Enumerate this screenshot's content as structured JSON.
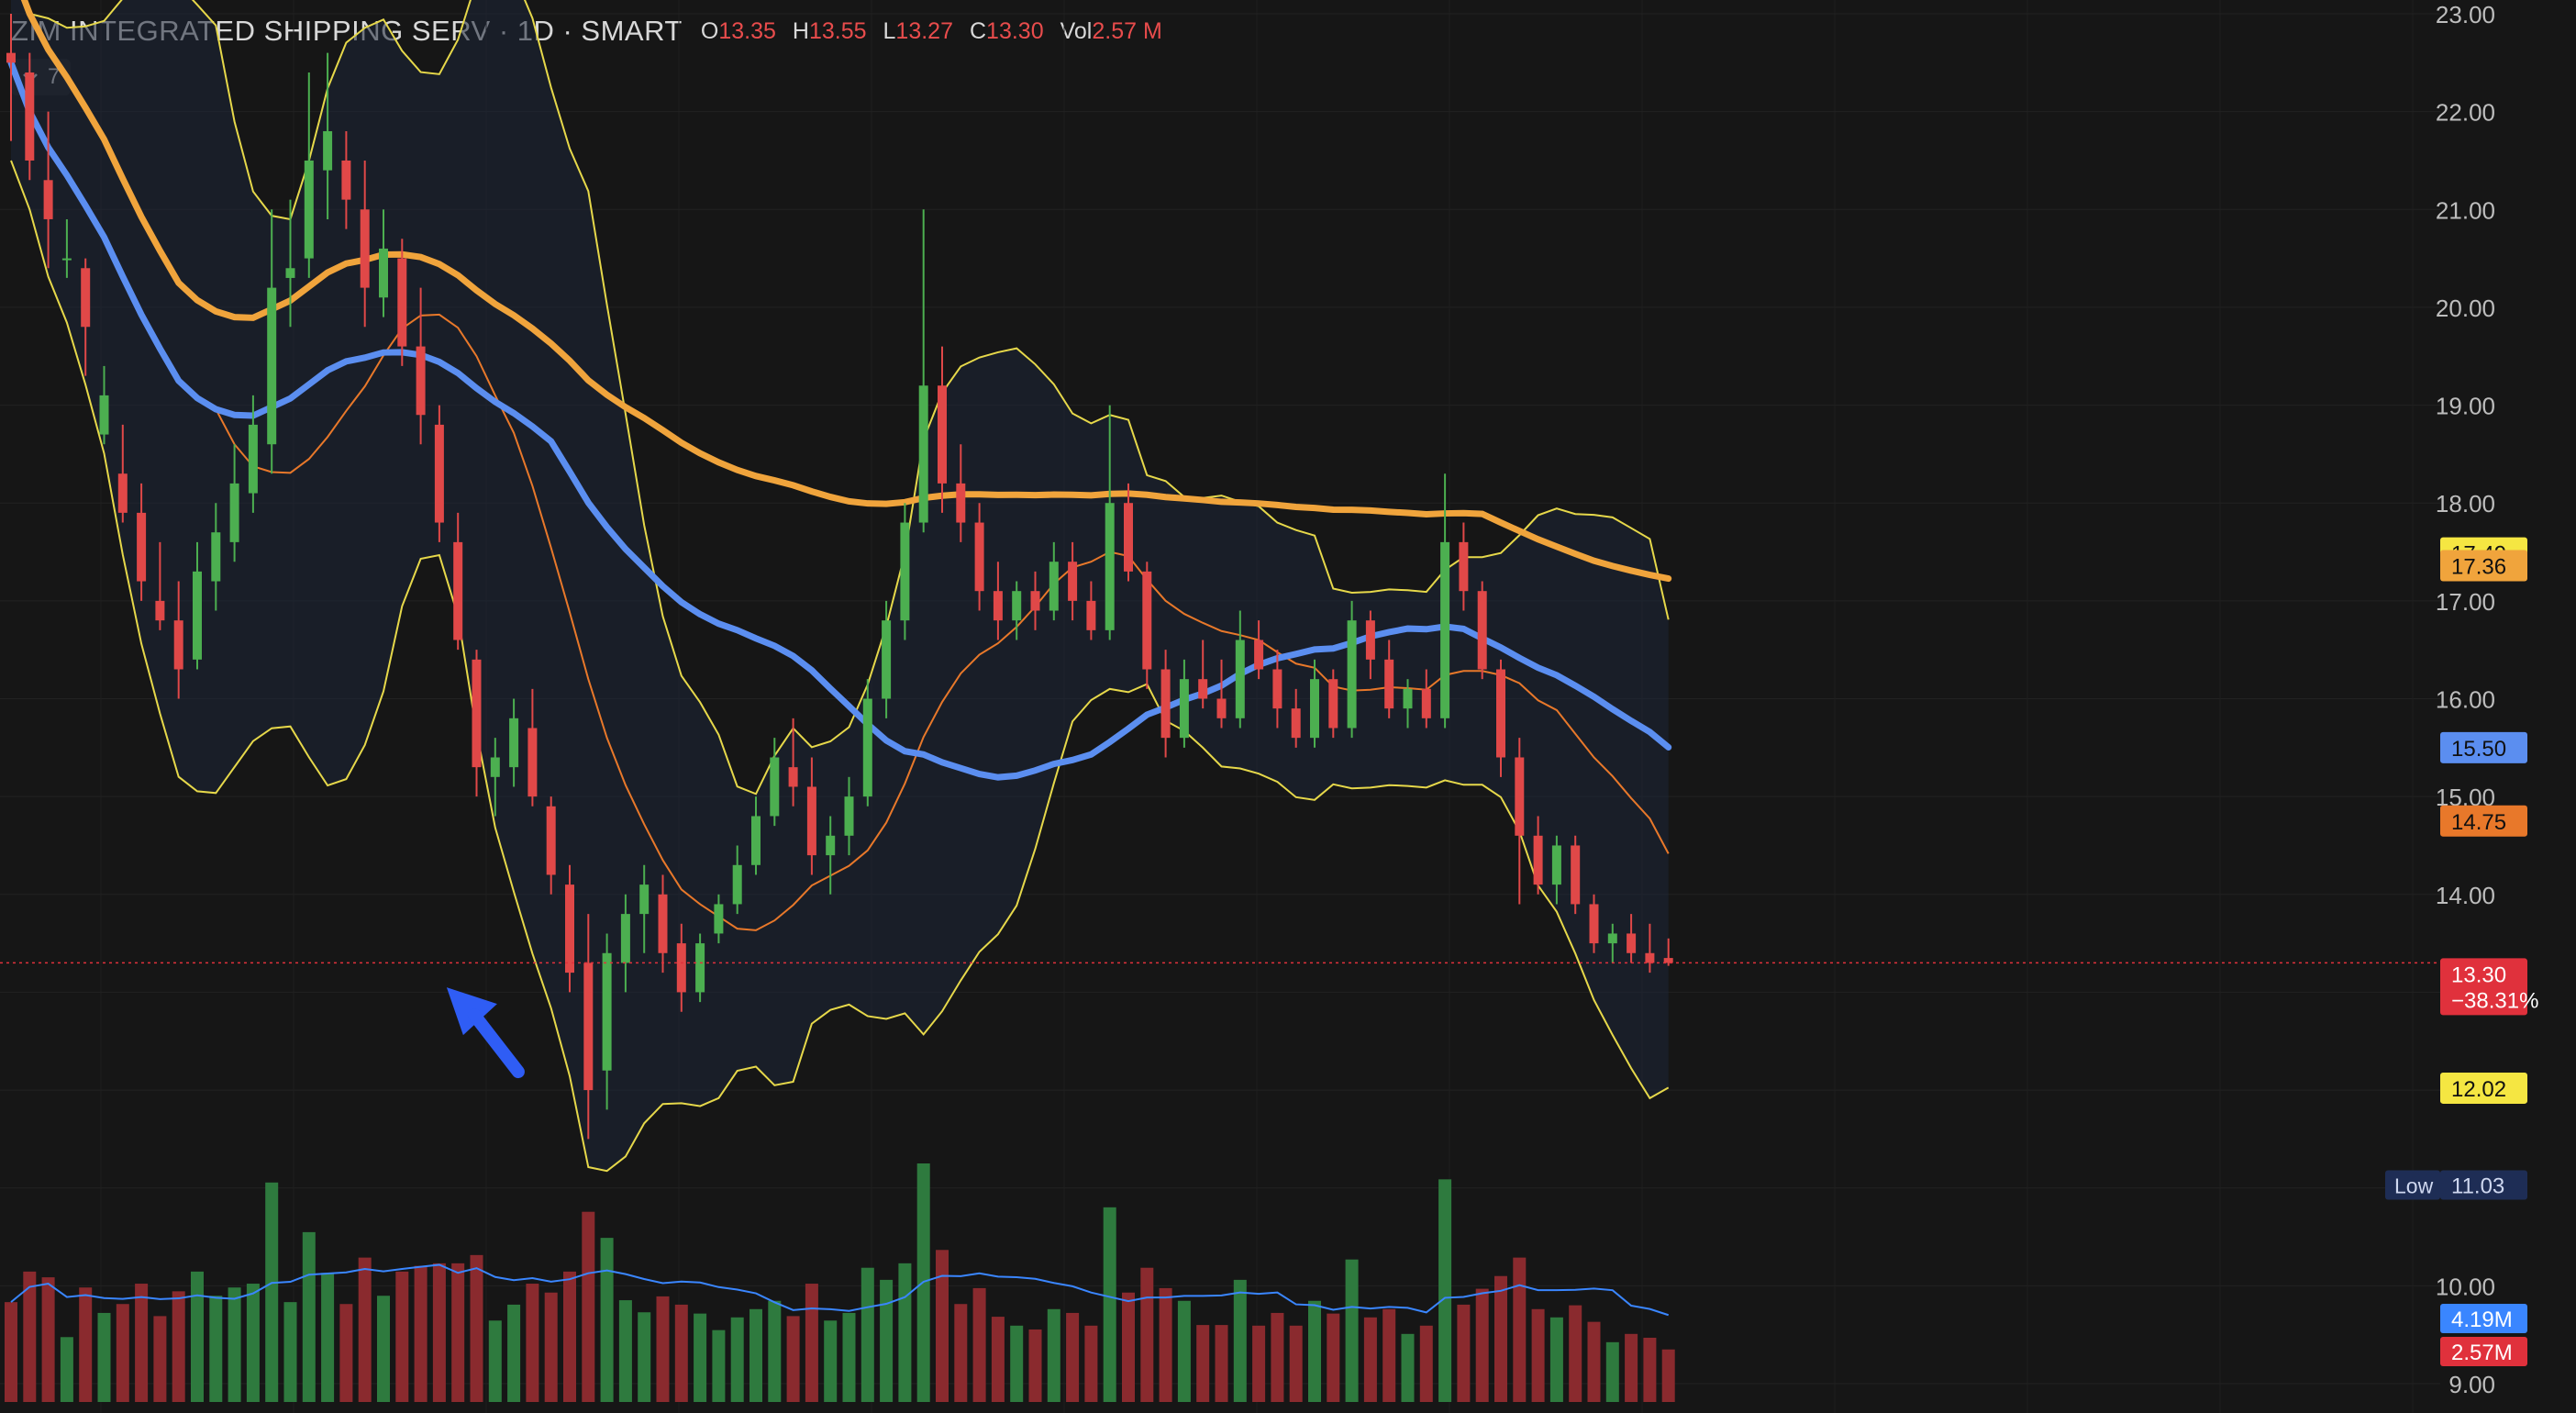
{
  "header": {
    "symbol": "ZIM INTEGRATED SHIPPING SERV · 1D · SMART",
    "open_label": "O",
    "open_value": "13.35",
    "high_label": "H",
    "high_value": "13.55",
    "low_label": "L",
    "low_value": "13.27",
    "close_label": "C",
    "close_value": "13.30",
    "volume_label": "Vol",
    "volume_value": "2.57 M"
  },
  "indicator_toggle": {
    "count": "7",
    "icon": "chevron-down-icon"
  },
  "colors": {
    "background": "#161616",
    "up_candle": "#4caf50",
    "down_candle": "#e04848",
    "bollinger_band": "#e6d84a",
    "bollinger_mid": "#e8782a",
    "ma_blue": "#5b8ef0",
    "ma_orange": "#f0a43c",
    "volume_up": "#2e7a3e",
    "volume_down": "#8a2a2e",
    "volume_ma": "#3a86ff",
    "annotation_arrow": "#2f5df5"
  },
  "chart_data": {
    "type": "candlestick",
    "price_axis": {
      "ticks": [
        "23.00",
        "22.00",
        "21.00",
        "20.00",
        "19.00",
        "18.00",
        "17.00",
        "16.00",
        "15.00",
        "14.00",
        "10.00",
        "9.00"
      ],
      "ylim": [
        9.0,
        23.0
      ]
    },
    "ohlc_sample": [
      [
        22.6,
        23.0,
        21.7,
        22.5
      ],
      [
        22.4,
        22.6,
        21.3,
        21.5
      ],
      [
        21.3,
        22.0,
        20.4,
        20.9
      ],
      [
        20.5,
        20.9,
        20.3,
        20.5
      ],
      [
        20.4,
        20.5,
        19.3,
        19.8
      ],
      [
        18.7,
        19.4,
        18.6,
        19.1
      ],
      [
        18.3,
        18.8,
        17.8,
        17.9
      ],
      [
        17.9,
        18.2,
        17.0,
        17.2
      ],
      [
        17.0,
        17.6,
        16.7,
        16.8
      ],
      [
        16.8,
        17.2,
        16.0,
        16.3
      ],
      [
        16.4,
        17.6,
        16.3,
        17.3
      ],
      [
        17.2,
        18.0,
        16.9,
        17.7
      ],
      [
        17.6,
        18.6,
        17.4,
        18.2
      ],
      [
        18.1,
        19.1,
        17.9,
        18.8
      ],
      [
        18.6,
        21.0,
        18.3,
        20.2
      ],
      [
        20.3,
        21.1,
        19.8,
        20.4
      ],
      [
        20.5,
        22.4,
        20.3,
        21.5
      ],
      [
        21.4,
        22.6,
        20.9,
        21.8
      ],
      [
        21.5,
        21.8,
        20.8,
        21.1
      ],
      [
        21.0,
        21.5,
        19.8,
        20.2
      ],
      [
        20.1,
        21.0,
        19.9,
        20.6
      ],
      [
        20.5,
        20.7,
        19.4,
        19.6
      ],
      [
        19.6,
        20.2,
        18.6,
        18.9
      ],
      [
        18.8,
        19.0,
        17.6,
        17.8
      ],
      [
        17.6,
        17.9,
        16.5,
        16.6
      ],
      [
        16.4,
        16.5,
        15.0,
        15.3
      ],
      [
        15.2,
        15.6,
        14.8,
        15.4
      ],
      [
        15.3,
        16.0,
        15.1,
        15.8
      ],
      [
        15.7,
        16.1,
        14.9,
        15.0
      ],
      [
        14.9,
        15.0,
        14.0,
        14.2
      ],
      [
        14.1,
        14.3,
        13.0,
        13.2
      ],
      [
        13.3,
        13.8,
        11.5,
        12.0
      ],
      [
        12.2,
        13.6,
        11.8,
        13.4
      ],
      [
        13.3,
        14.0,
        13.0,
        13.8
      ],
      [
        13.8,
        14.3,
        13.4,
        14.1
      ],
      [
        14.0,
        14.2,
        13.2,
        13.4
      ],
      [
        13.5,
        13.7,
        12.8,
        13.0
      ],
      [
        13.0,
        13.6,
        12.9,
        13.5
      ],
      [
        13.6,
        14.0,
        13.5,
        13.9
      ],
      [
        13.9,
        14.5,
        13.8,
        14.3
      ],
      [
        14.3,
        15.0,
        14.2,
        14.8
      ],
      [
        14.8,
        15.6,
        14.7,
        15.4
      ],
      [
        15.3,
        15.8,
        14.9,
        15.1
      ],
      [
        15.1,
        15.4,
        14.2,
        14.4
      ],
      [
        14.4,
        14.8,
        14.0,
        14.6
      ],
      [
        14.6,
        15.2,
        14.4,
        15.0
      ],
      [
        15.0,
        16.2,
        14.9,
        16.0
      ],
      [
        16.0,
        17.0,
        15.8,
        16.8
      ],
      [
        16.8,
        18.0,
        16.6,
        17.8
      ],
      [
        17.8,
        21.0,
        17.7,
        19.2
      ],
      [
        19.2,
        19.6,
        17.9,
        18.2
      ],
      [
        18.2,
        18.6,
        17.6,
        17.8
      ],
      [
        17.8,
        18.0,
        16.9,
        17.1
      ],
      [
        17.1,
        17.4,
        16.6,
        16.8
      ],
      [
        16.8,
        17.2,
        16.6,
        17.1
      ],
      [
        17.1,
        17.3,
        16.7,
        16.9
      ],
      [
        16.9,
        17.6,
        16.8,
        17.4
      ],
      [
        17.4,
        17.6,
        16.8,
        17.0
      ],
      [
        17.0,
        17.2,
        16.6,
        16.7
      ],
      [
        16.7,
        19.0,
        16.6,
        18.0
      ],
      [
        18.0,
        18.2,
        17.2,
        17.3
      ],
      [
        17.3,
        17.4,
        16.1,
        16.3
      ],
      [
        16.3,
        16.5,
        15.4,
        15.6
      ],
      [
        15.6,
        16.4,
        15.5,
        16.2
      ],
      [
        16.2,
        16.6,
        15.9,
        16.0
      ],
      [
        16.0,
        16.4,
        15.7,
        15.8
      ],
      [
        15.8,
        16.9,
        15.7,
        16.6
      ],
      [
        16.6,
        16.8,
        16.2,
        16.3
      ],
      [
        16.3,
        16.5,
        15.7,
        15.9
      ],
      [
        15.9,
        16.1,
        15.5,
        15.6
      ],
      [
        15.6,
        16.4,
        15.5,
        16.2
      ],
      [
        16.2,
        16.3,
        15.6,
        15.7
      ],
      [
        15.7,
        17.0,
        15.6,
        16.8
      ],
      [
        16.8,
        16.9,
        16.2,
        16.4
      ],
      [
        16.4,
        16.6,
        15.8,
        15.9
      ],
      [
        15.9,
        16.2,
        15.7,
        16.1
      ],
      [
        16.1,
        16.3,
        15.7,
        15.8
      ],
      [
        15.8,
        18.3,
        15.7,
        17.6
      ],
      [
        17.6,
        17.8,
        16.9,
        17.1
      ],
      [
        17.1,
        17.2,
        16.2,
        16.3
      ],
      [
        16.3,
        16.4,
        15.2,
        15.4
      ],
      [
        15.4,
        15.6,
        13.9,
        14.6
      ],
      [
        14.6,
        14.8,
        14.0,
        14.1
      ],
      [
        14.1,
        14.6,
        13.9,
        14.5
      ],
      [
        14.5,
        14.6,
        13.8,
        13.9
      ],
      [
        13.9,
        14.0,
        13.4,
        13.5
      ],
      [
        13.5,
        13.7,
        13.3,
        13.6
      ],
      [
        13.6,
        13.8,
        13.3,
        13.4
      ],
      [
        13.4,
        13.7,
        13.2,
        13.3
      ],
      [
        13.35,
        13.55,
        13.27,
        13.3
      ]
    ],
    "series": [
      {
        "name": "",
        "type": "bollinger-upper"
      },
      {
        "name": "",
        "type": "bollinger-lower"
      },
      {
        "name": "",
        "type": "bollinger-basis"
      },
      {
        "name": "",
        "type": "moving-average-blue"
      },
      {
        "name": "",
        "type": "moving-average-orange"
      }
    ],
    "price_labels": [
      {
        "text": "17.49",
        "value": 17.49,
        "bg": "#f5e642",
        "fg": "#111111"
      },
      {
        "text": "17.36",
        "value": 17.36,
        "bg": "#f0a43c",
        "fg": "#111111"
      },
      {
        "text": "15.50",
        "value": 15.5,
        "bg": "#5b8ef0",
        "fg": "#111111"
      },
      {
        "text": "14.75",
        "value": 14.75,
        "bg": "#e8782a",
        "fg": "#111111"
      },
      {
        "text": "12.02",
        "value": 12.02,
        "bg": "#f5e642",
        "fg": "#111111"
      }
    ],
    "last_price": {
      "value": "13.30",
      "change": "−38.31%",
      "bg": "#e0313c"
    },
    "low_marker": {
      "label": "Low",
      "value": "11.03"
    },
    "volume_labels": [
      {
        "text": "4.19M",
        "bg": "#3a86ff"
      },
      {
        "text": "2.57M",
        "bg": "#e0313c"
      }
    ]
  }
}
